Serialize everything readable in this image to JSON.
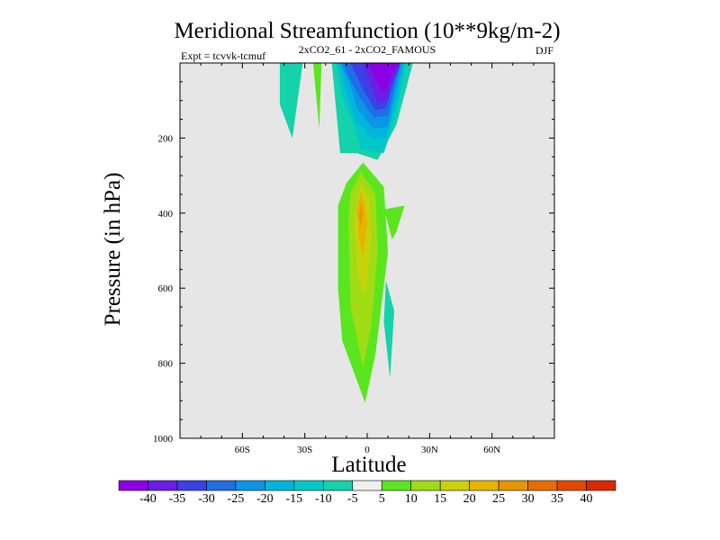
{
  "chart_data": {
    "type": "heatmap",
    "subtype": "filled-contour",
    "title": "Meridional Streamfunction (10**9kg/m-2)",
    "subtitle_left": "Expt = tcvvk-tcmuf",
    "subtitle_center": "2xCO2_61 - 2xCO2_FAMOUS",
    "subtitle_right": "DJF",
    "xlabel": "Latitude",
    "ylabel": "Pressure (in hPa)",
    "xlim": [
      -90,
      90
    ],
    "ylim": [
      1000,
      0
    ],
    "y_reversed": true,
    "grid": false,
    "background_color": "#e6e6e6",
    "x_ticks": [
      {
        "value": -60,
        "label": "60S"
      },
      {
        "value": -30,
        "label": "30S"
      },
      {
        "value": 0,
        "label": "0"
      },
      {
        "value": 30,
        "label": "30N"
      },
      {
        "value": 60,
        "label": "60N"
      }
    ],
    "y_ticks": [
      {
        "value": 200,
        "label": "200"
      },
      {
        "value": 400,
        "label": "400"
      },
      {
        "value": 600,
        "label": "600"
      },
      {
        "value": 800,
        "label": "800"
      },
      {
        "value": 1000,
        "label": "1000"
      }
    ],
    "colorbar": {
      "labels": [
        "-40",
        "-35",
        "-30",
        "-25",
        "-20",
        "-15",
        "-10",
        "-5",
        "5",
        "10",
        "15",
        "20",
        "25",
        "30",
        "35",
        "40"
      ],
      "colors": [
        "#8c00e6",
        "#6a1ee6",
        "#3c40e6",
        "#1e6ee6",
        "#0a96e6",
        "#00b4dc",
        "#00c8c8",
        "#14d2aa",
        "#f0f0f0",
        "#5ae61e",
        "#a0dc14",
        "#c8d20a",
        "#e6b400",
        "#e69600",
        "#e66e00",
        "#e64600",
        "#dc2800"
      ]
    },
    "regions": [
      {
        "level": -5,
        "color": "#14d2aa",
        "points": [
          [
            -42,
            0
          ],
          [
            -31,
            0
          ],
          [
            -36,
            200
          ],
          [
            -42,
            110
          ]
        ]
      },
      {
        "level": 5,
        "color": "#5ae61e",
        "points": [
          [
            -26,
            0
          ],
          [
            -22,
            0
          ],
          [
            -23,
            175
          ],
          [
            -25,
            60
          ]
        ]
      },
      {
        "level": -5,
        "color": "#14d2aa",
        "points": [
          [
            -17,
            0
          ],
          [
            22,
            0
          ],
          [
            14,
            165
          ],
          [
            5,
            258
          ],
          [
            -5,
            240
          ],
          [
            -13,
            240
          ],
          [
            -15,
            120
          ]
        ]
      },
      {
        "level": -10,
        "color": "#00c8c8",
        "points": [
          [
            -15,
            0
          ],
          [
            19,
            0
          ],
          [
            13,
            155
          ],
          [
            8,
            240
          ],
          [
            -3,
            230
          ],
          [
            -6,
            170
          ],
          [
            -12,
            90
          ]
        ]
      },
      {
        "level": -15,
        "color": "#00b4dc",
        "points": [
          [
            -14,
            0
          ],
          [
            18,
            0
          ],
          [
            12,
            140
          ],
          [
            9,
            200
          ],
          [
            2,
            200
          ],
          [
            -6,
            150
          ],
          [
            -10,
            80
          ]
        ]
      },
      {
        "level": -20,
        "color": "#0a96e6",
        "points": [
          [
            -13,
            0
          ],
          [
            17,
            0
          ],
          [
            12,
            115
          ],
          [
            10,
            170
          ],
          [
            3,
            175
          ],
          [
            -5,
            120
          ],
          [
            -8,
            60
          ]
        ]
      },
      {
        "level": -25,
        "color": "#1e6ee6",
        "points": [
          [
            -12,
            0
          ],
          [
            16,
            0
          ],
          [
            12,
            90
          ],
          [
            10,
            140
          ],
          [
            3,
            145
          ],
          [
            -5,
            80
          ]
        ]
      },
      {
        "level": -30,
        "color": "#3c40e6",
        "points": [
          [
            -8,
            0
          ],
          [
            16,
            0
          ],
          [
            11,
            80
          ],
          [
            9,
            120
          ],
          [
            4,
            125
          ],
          [
            -2,
            70
          ]
        ]
      },
      {
        "level": -35,
        "color": "#6a1ee6",
        "points": [
          [
            -2,
            0
          ],
          [
            16,
            0
          ],
          [
            11,
            60
          ],
          [
            10,
            100
          ],
          [
            5,
            105
          ],
          [
            1,
            50
          ]
        ]
      },
      {
        "level": -40,
        "color": "#8c00e6",
        "points": [
          [
            1,
            0
          ],
          [
            15,
            0
          ],
          [
            11,
            40
          ],
          [
            9,
            70
          ],
          [
            7,
            75
          ],
          [
            4,
            45
          ]
        ]
      },
      {
        "level": 5,
        "color": "#5ae61e",
        "points": [
          [
            -2,
            265
          ],
          [
            8,
            330
          ],
          [
            10,
            505
          ],
          [
            4,
            775
          ],
          [
            -1,
            905
          ],
          [
            -12,
            740
          ],
          [
            -14,
            600
          ],
          [
            -14,
            380
          ],
          [
            -10,
            320
          ]
        ]
      },
      {
        "level": 5,
        "color": "#5ae61e",
        "points": [
          [
            8,
            390
          ],
          [
            18,
            380
          ],
          [
            14,
            450
          ],
          [
            12,
            470
          ]
        ]
      },
      {
        "level": 10,
        "color": "#a0dc14",
        "points": [
          [
            -3,
            290
          ],
          [
            4,
            350
          ],
          [
            5,
            500
          ],
          [
            2,
            700
          ],
          [
            -2,
            810
          ],
          [
            -8,
            650
          ],
          [
            -9,
            420
          ],
          [
            -8,
            345
          ]
        ]
      },
      {
        "level": 15,
        "color": "#c8d20a",
        "points": [
          [
            -3,
            320
          ],
          [
            1,
            365
          ],
          [
            2,
            460
          ],
          [
            0,
            580
          ],
          [
            -2,
            620
          ],
          [
            -5,
            540
          ],
          [
            -6,
            400
          ]
        ]
      },
      {
        "level": 20,
        "color": "#e6b400",
        "points": [
          [
            -3,
            340
          ],
          [
            -1,
            380
          ],
          [
            0,
            430
          ],
          [
            -2,
            510
          ],
          [
            -4,
            470
          ],
          [
            -5,
            390
          ]
        ]
      },
      {
        "level": 25,
        "color": "#e69600",
        "points": [
          [
            -3,
            370
          ],
          [
            -2,
            400
          ],
          [
            -3,
            440
          ],
          [
            -4,
            410
          ]
        ]
      },
      {
        "level": -5,
        "color": "#14d2aa",
        "points": [
          [
            9,
            580
          ],
          [
            13,
            660
          ],
          [
            11,
            840
          ],
          [
            8,
            690
          ]
        ]
      }
    ]
  }
}
